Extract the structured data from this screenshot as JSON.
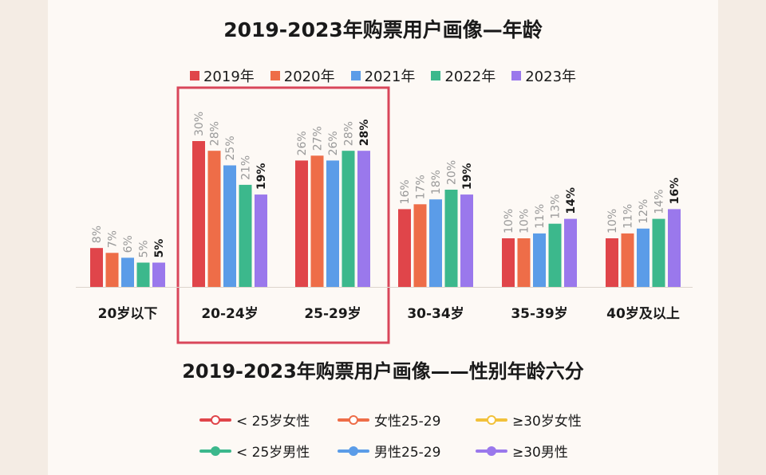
{
  "colors": {
    "y2019": "#e0454a",
    "y2020": "#ee6d48",
    "y2021": "#5b9ce8",
    "y2022": "#3cb88c",
    "y2023": "#9a78ec",
    "highlight": "#d9465a",
    "label_gray": "#9a9a9a",
    "label_dark": "#1a1a1a"
  },
  "titles": {
    "chart1": "2019-2023年购票用户画像—年龄",
    "chart2": "2019-2023年购票用户画像——性别年龄六分"
  },
  "chart_data": [
    {
      "type": "bar",
      "title": "2019-2023年购票用户画像—年龄",
      "categories": [
        "20岁以下",
        "20-24岁",
        "25-29岁",
        "30-34岁",
        "35-39岁",
        "40岁及以上"
      ],
      "series": [
        {
          "name": "2019年",
          "values": [
            8,
            30,
            26,
            16,
            10,
            10
          ],
          "labels": [
            "8%",
            "30%",
            "26%",
            "16%",
            "10%",
            "10%"
          ],
          "color": "#e0454a"
        },
        {
          "name": "2020年",
          "values": [
            7,
            28,
            27,
            17,
            10,
            11
          ],
          "labels": [
            "7%",
            "28%",
            "27%",
            "17%",
            "10%",
            "11%"
          ],
          "color": "#ee6d48"
        },
        {
          "name": "2021年",
          "values": [
            6,
            25,
            26,
            18,
            11,
            12
          ],
          "labels": [
            "6%",
            "25%",
            "26%",
            "18%",
            "11%",
            "12%"
          ],
          "color": "#5b9ce8"
        },
        {
          "name": "2022年",
          "values": [
            5,
            21,
            28,
            20,
            13,
            14
          ],
          "labels": [
            "5%",
            "21%",
            "28%",
            "20%",
            "13%",
            "14%"
          ],
          "color": "#3cb88c"
        },
        {
          "name": "2023年",
          "values": [
            5,
            19,
            28,
            19,
            14,
            16
          ],
          "labels": [
            "5%",
            "19%",
            "28%",
            "19%",
            "14%",
            "16%"
          ],
          "color": "#9a78ec"
        }
      ],
      "highlighted_categories": [
        "20-24岁",
        "25-29岁"
      ],
      "grid": false,
      "legend": "top"
    },
    {
      "type": "line",
      "title": "2019-2023年购票用户画像——性别年龄六分",
      "legend": "top",
      "series": [
        {
          "name": "< 25岁女性",
          "color": "#e0454a"
        },
        {
          "name": "女性25-29",
          "color": "#ee6d48"
        },
        {
          "name": "≥30岁女性",
          "color": "#f2c13a"
        },
        {
          "name": "< 25岁男性",
          "color": "#3cb88c"
        },
        {
          "name": "男性25-29",
          "color": "#5b9ce8"
        },
        {
          "name": "≥30男性",
          "color": "#9a78ec"
        }
      ]
    }
  ]
}
